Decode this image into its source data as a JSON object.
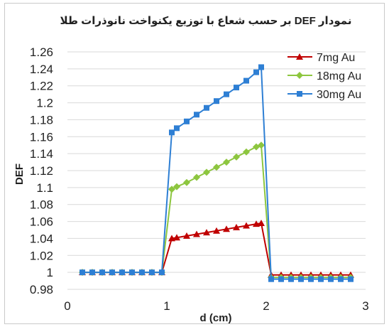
{
  "chart_data": {
    "type": "line",
    "title": "نمودار DEF بر حسب شعاع با توزیع یکنواخت نانوذرات طلا",
    "xlabel": "d (cm)",
    "ylabel": "DEF",
    "xlim": [
      0,
      3
    ],
    "ylim": [
      0.98,
      1.26
    ],
    "x_ticks": [
      "0",
      "1",
      "2",
      "3"
    ],
    "y_ticks": [
      "0.98",
      "1",
      "1.02",
      "1.04",
      "1.06",
      "1.08",
      "1.1",
      "1.12",
      "1.14",
      "1.16",
      "1.18",
      "1.2",
      "1.22",
      "1.24",
      "1.26"
    ],
    "grid": "horizontal",
    "legend_position": "top-right",
    "x": [
      0.15,
      0.25,
      0.35,
      0.45,
      0.55,
      0.65,
      0.75,
      0.85,
      0.95,
      1.05,
      1.1,
      1.2,
      1.3,
      1.4,
      1.5,
      1.6,
      1.7,
      1.8,
      1.9,
      1.95,
      2.05,
      2.15,
      2.25,
      2.35,
      2.45,
      2.55,
      2.65,
      2.75,
      2.85
    ],
    "series": [
      {
        "name": "7mg  Au",
        "color": "#c00000",
        "marker": "triangle",
        "values": [
          1.0,
          1.0,
          1.0,
          1.0,
          1.0,
          1.0,
          1.0,
          1.0,
          1.0,
          1.04,
          1.041,
          1.043,
          1.045,
          1.047,
          1.049,
          1.051,
          1.053,
          1.055,
          1.057,
          1.058,
          0.997,
          0.997,
          0.997,
          0.997,
          0.997,
          0.997,
          0.997,
          0.997,
          0.997
        ]
      },
      {
        "name": "18mg  Au",
        "color": "#8dc63f",
        "marker": "diamond",
        "values": [
          1.0,
          1.0,
          1.0,
          1.0,
          1.0,
          1.0,
          1.0,
          1.0,
          1.0,
          1.098,
          1.101,
          1.106,
          1.112,
          1.118,
          1.124,
          1.13,
          1.136,
          1.142,
          1.148,
          1.15,
          0.994,
          0.994,
          0.994,
          0.994,
          0.994,
          0.994,
          0.994,
          0.994,
          0.994
        ]
      },
      {
        "name": "30mg  Au",
        "color": "#2e7fd4",
        "marker": "square",
        "values": [
          1.0,
          1.0,
          1.0,
          1.0,
          1.0,
          1.0,
          1.0,
          1.0,
          1.0,
          1.165,
          1.17,
          1.178,
          1.186,
          1.194,
          1.202,
          1.21,
          1.218,
          1.226,
          1.236,
          1.242,
          0.992,
          0.992,
          0.992,
          0.992,
          0.992,
          0.992,
          0.992,
          0.992,
          0.992
        ]
      }
    ]
  }
}
